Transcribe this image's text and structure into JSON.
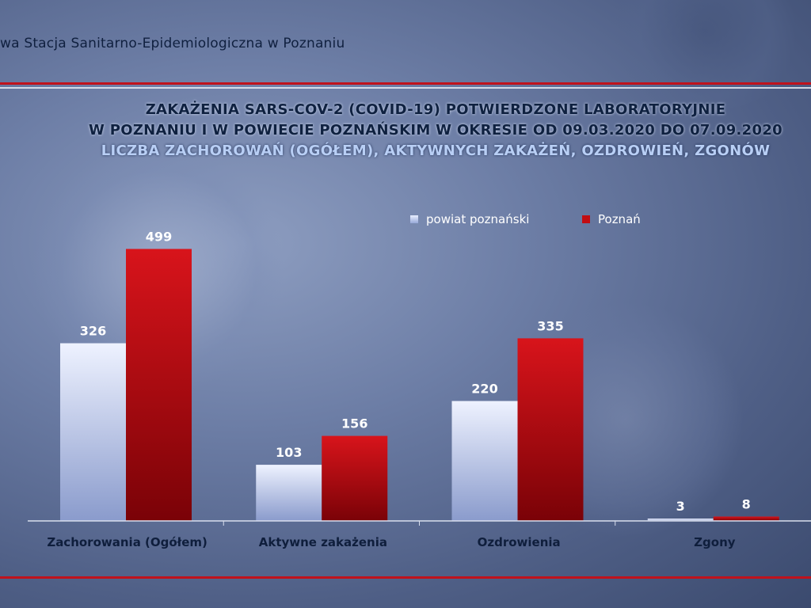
{
  "header": {
    "institution": "wa Stacja Sanitarno-Epidemiologiczna w Poznaniu"
  },
  "title": {
    "line1": "ZAKAŻENIA SARS-COV-2 (COVID-19) POTWIERDZONE LABORATORYJNIE",
    "line2": "W POZNANIU I W POWIECIE POZNAŃSKIM W OKRESIE OD 09.03.2020 DO 07.09.2020",
    "line3": "LICZBA ZACHOROWAŃ (OGÓŁEM), AKTYWNYCH ZAKAŻEŃ, OZDROWIEŃ, ZGONÓW"
  },
  "legend": {
    "series1": "powiat poznański",
    "series2": "Poznań"
  },
  "colors": {
    "series1": "#aab9e6",
    "series2": "#c20d12",
    "accent_red": "#c0121c"
  },
  "chart_data": {
    "type": "bar",
    "categories": [
      "Zachorowania (Ogółem)",
      "Aktywne zakażenia",
      "Ozdrowienia",
      "Zgony"
    ],
    "series": [
      {
        "name": "powiat poznański",
        "values": [
          326,
          103,
          220,
          3
        ]
      },
      {
        "name": "Poznań",
        "values": [
          499,
          156,
          335,
          8
        ]
      }
    ],
    "ylim": [
      0,
      520
    ],
    "grid": false,
    "legend_position": "top-right"
  }
}
